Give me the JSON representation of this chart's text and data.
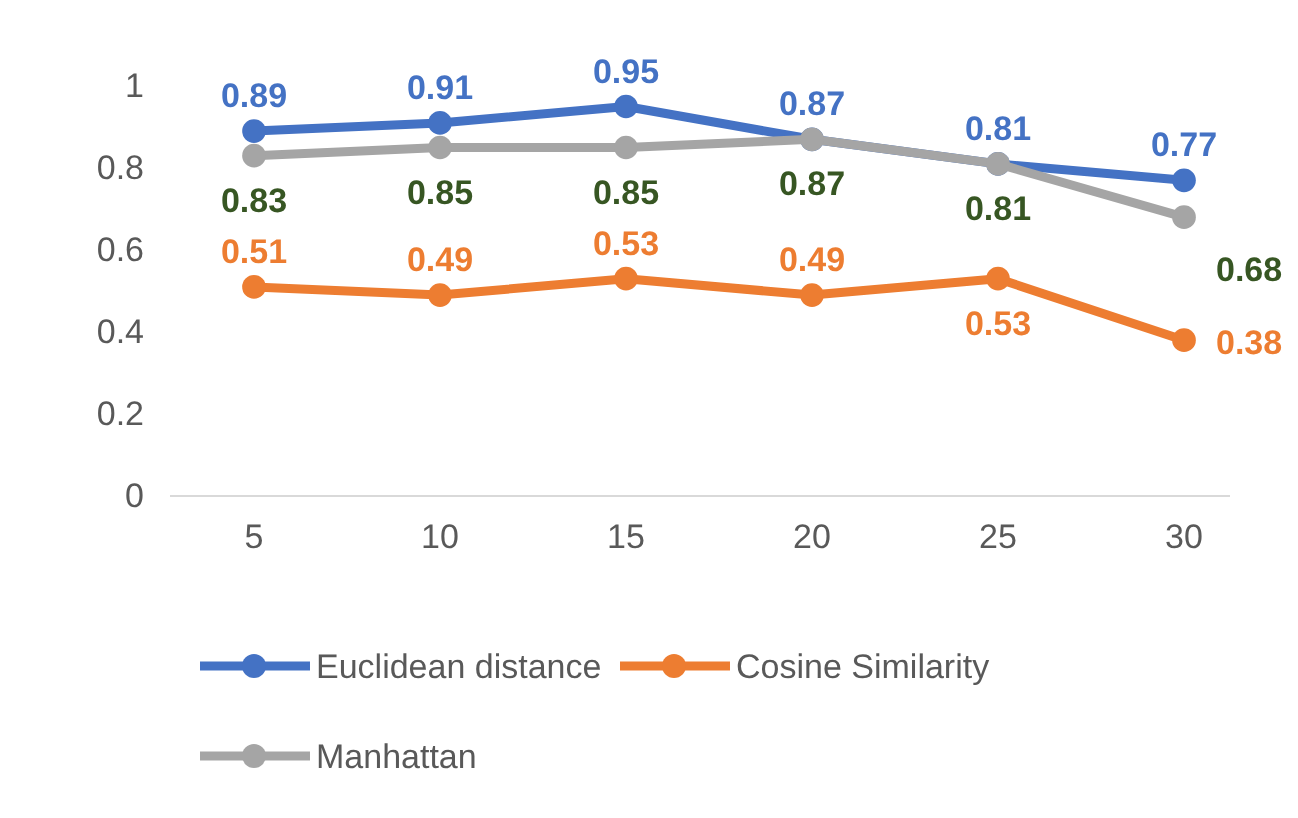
{
  "chart_data": {
    "type": "line",
    "categories": [
      "5",
      "10",
      "15",
      "20",
      "25",
      "30"
    ],
    "series": [
      {
        "name": "Euclidean distance",
        "color": "#4472c4",
        "values": [
          0.89,
          0.91,
          0.95,
          0.87,
          0.81,
          0.77
        ]
      },
      {
        "name": "Cosine Similarity",
        "color": "#ed7d31",
        "values": [
          0.51,
          0.49,
          0.53,
          0.49,
          0.53,
          0.38
        ]
      },
      {
        "name": "Manhattan",
        "color": "#a5a5a5",
        "values": [
          0.83,
          0.85,
          0.85,
          0.87,
          0.81,
          0.68
        ]
      }
    ],
    "ylim": [
      0,
      1
    ],
    "yticks": [
      0,
      0.2,
      0.4,
      0.6,
      0.8,
      1
    ],
    "grid": false,
    "legend": "bottom",
    "marker": "circle",
    "line_style": "solid",
    "data_labels": true
  }
}
